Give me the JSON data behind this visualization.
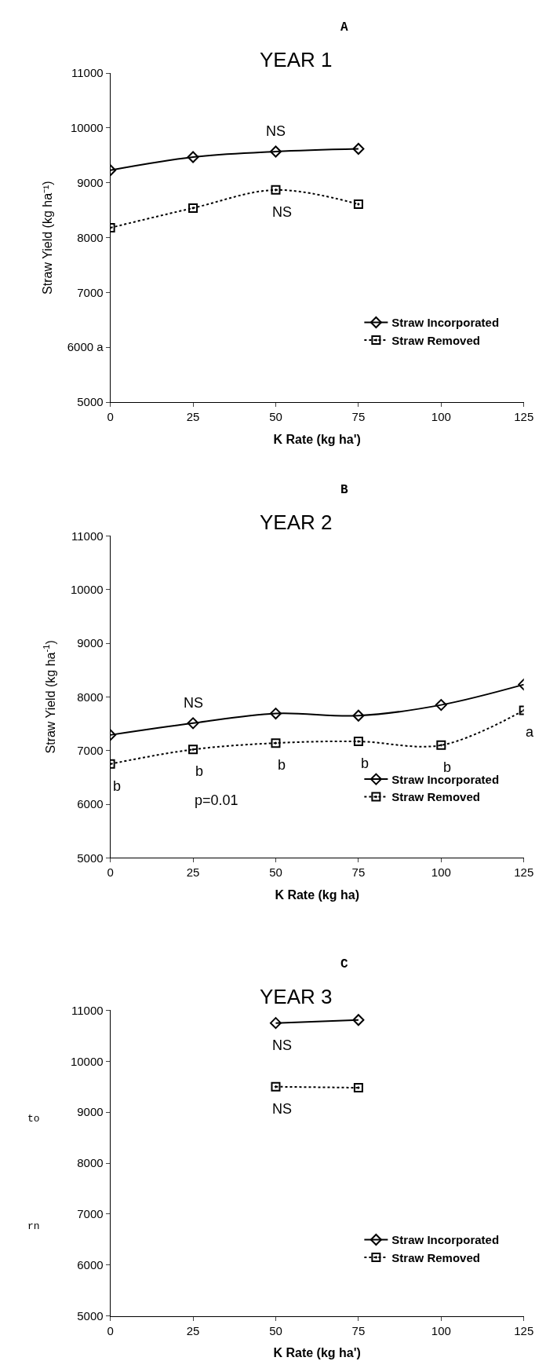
{
  "chart_data": [
    {
      "type": "line",
      "title": "A",
      "subtitle": "YEAR 1",
      "xlabel": "K Rate (kg ha')",
      "ylabel": "Straw Yield (kg ha⁻¹)",
      "xlim": [
        0,
        125
      ],
      "xticks": [
        0,
        25,
        50,
        75,
        100,
        125
      ],
      "ylim": [
        5000,
        11000
      ],
      "yticks": [
        5000,
        {
          "value": 6000,
          "label": "6000 a"
        },
        7000,
        8000,
        9000,
        10000,
        11000
      ],
      "series": [
        {
          "name": "Straw Incorporated",
          "color": "#000000",
          "x": [
            0,
            25,
            50,
            75
          ],
          "values": [
            9230,
            9470,
            9570,
            9620
          ],
          "marker": "diamond",
          "line_style": "solid"
        },
        {
          "name": "Straw Removed",
          "color": "#000000",
          "x": [
            0,
            25,
            50,
            75
          ],
          "values": [
            8180,
            8540,
            8870,
            8610
          ],
          "marker": "square",
          "line_style": "dotted"
        }
      ],
      "annotations": [
        {
          "text": "NS",
          "x": 50,
          "y": 9570
        },
        {
          "text": "NS",
          "x": 50,
          "y": 8870
        }
      ],
      "legend": "bottom right",
      "grid": false
    },
    {
      "type": "line",
      "title": "B",
      "subtitle": "YEAR 2",
      "xlabel": "K Rate (kg ha)",
      "ylabel": "Straw Yield (kg ha$^{-1}$)",
      "xlim": [
        0,
        125
      ],
      "xticks": [
        0,
        25,
        50,
        75,
        100,
        125
      ],
      "ylim": [
        5000,
        11000
      ],
      "yticks": [
        5000,
        6000,
        7000,
        8000,
        9000,
        10000,
        11000
      ],
      "series": [
        {
          "name": "Straw Incorporated",
          "color": "#000000",
          "x": [
            0,
            25,
            50,
            75,
            100,
            125
          ],
          "values": [
            7290,
            7510,
            7690,
            7650,
            7850,
            8230
          ],
          "marker": "diamond",
          "line_style": "solid"
        },
        {
          "name": "Straw Removed",
          "color": "#000000",
          "x": [
            0,
            25,
            50,
            75,
            100,
            125
          ],
          "values": [
            6750,
            7020,
            7140,
            7170,
            7100,
            7750
          ],
          "marker": "square",
          "line_style": "dotted"
        }
      ],
      "annotations": [
        {
          "text": "NS",
          "x": 25,
          "y": 7510
        },
        {
          "text": "b",
          "x": 0,
          "y": 6750
        },
        {
          "text": "b",
          "x": 25,
          "y": 7020
        },
        {
          "text": "b",
          "x": 50,
          "y": 7140
        },
        {
          "text": "b",
          "x": 75,
          "y": 7170
        },
        {
          "text": "b",
          "x": 100,
          "y": 7100
        },
        {
          "text": "a",
          "x": 125,
          "y": 7750
        },
        "p=0.01"
      ],
      "legend": "bottom right",
      "grid": false
    },
    {
      "type": "line",
      "title": "C",
      "subtitle": "YEAR 3",
      "xlabel": "K Rate (kg ha')",
      "xlim": [
        0,
        125
      ],
      "xticks": [
        0,
        25,
        50,
        75,
        100,
        125
      ],
      "ylim": [
        5000,
        11000
      ],
      "yticks": [
        5000,
        6000,
        7000,
        8000,
        9000,
        10000,
        11000
      ],
      "series": [
        {
          "name": "Straw Incorporated",
          "color": "#000000",
          "x": [
            50,
            75
          ],
          "values": [
            10750,
            10810
          ],
          "marker": "diamond",
          "line_style": "solid"
        },
        {
          "name": "Straw Removed",
          "color": "#000000",
          "x": [
            50,
            75
          ],
          "values": [
            9500,
            9480
          ],
          "marker": "square",
          "line_style": "dotted"
        }
      ],
      "annotations": [
        {
          "text": "NS",
          "x": 50,
          "y": 10750
        },
        {
          "text": "NS",
          "x": 50,
          "y": 9500
        },
        "to",
        "rn"
      ],
      "legend": "bottom right",
      "grid": false
    }
  ]
}
